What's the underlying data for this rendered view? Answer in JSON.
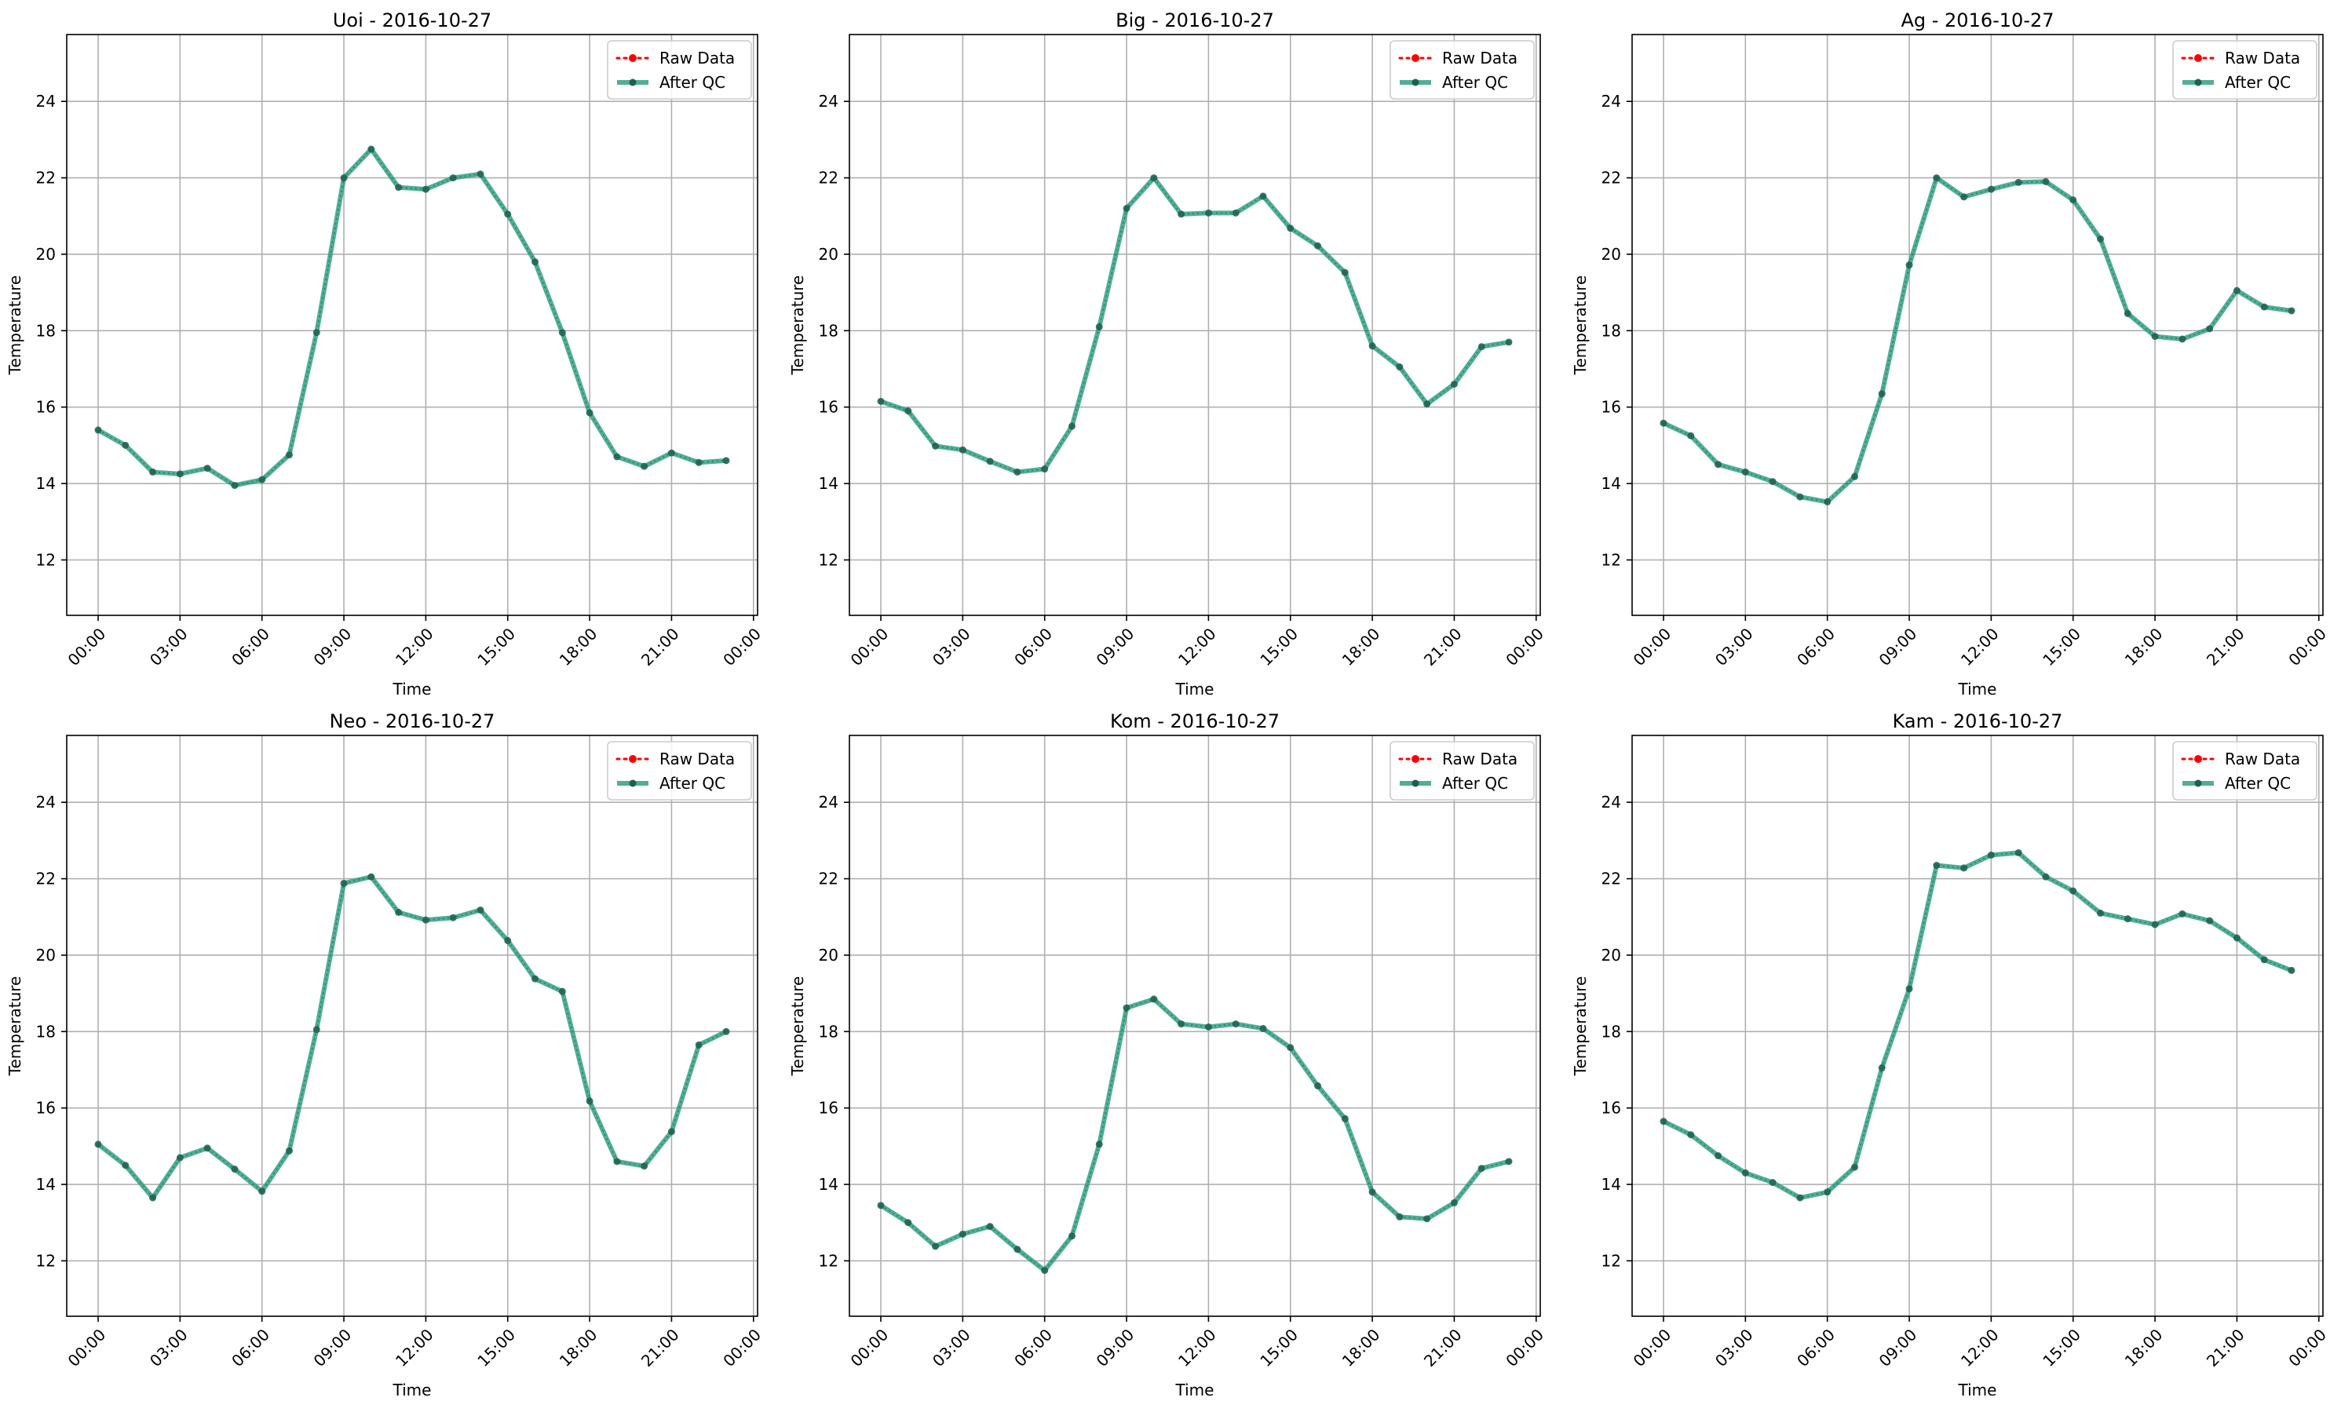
{
  "figure": {
    "background": "#ffffff",
    "legend_labels": {
      "raw": "Raw Data",
      "qc": "After QC"
    },
    "colors": {
      "raw": "#ff0000",
      "qc": "#2a9d7f",
      "marker_dark": "#1f5f4f",
      "grid": "#b0b0b0"
    }
  },
  "chart_data": [
    {
      "type": "line",
      "title": "Uoi - 2016-10-27",
      "xlabel": "Time",
      "ylabel": "Temperature",
      "x": [
        "00:00",
        "01:00",
        "02:00",
        "03:00",
        "04:00",
        "05:00",
        "06:00",
        "07:00",
        "08:00",
        "09:00",
        "10:00",
        "11:00",
        "12:00",
        "13:00",
        "14:00",
        "15:00",
        "16:00",
        "17:00",
        "18:00",
        "19:00",
        "20:00",
        "21:00",
        "22:00",
        "23:00"
      ],
      "series": [
        {
          "name": "Raw Data",
          "values": [
            15.4,
            15.0,
            14.3,
            14.25,
            14.4,
            13.95,
            14.1,
            14.75,
            17.95,
            22.0,
            22.75,
            21.75,
            21.7,
            22.0,
            22.1,
            21.05,
            19.8,
            17.95,
            15.85,
            14.7,
            14.45,
            14.8,
            14.55,
            14.6
          ]
        },
        {
          "name": "After QC",
          "values": [
            15.4,
            15.0,
            14.3,
            14.25,
            14.4,
            13.95,
            14.1,
            14.75,
            17.95,
            22.0,
            22.75,
            21.75,
            21.7,
            22.0,
            22.1,
            21.05,
            19.8,
            17.95,
            15.85,
            14.7,
            14.45,
            14.8,
            14.55,
            14.6
          ]
        }
      ],
      "xticks": [
        "00:00",
        "03:00",
        "06:00",
        "09:00",
        "12:00",
        "15:00",
        "18:00",
        "21:00",
        "00:00"
      ],
      "yticks": [
        12,
        14,
        16,
        18,
        20,
        22,
        24
      ],
      "ylim": [
        10.55,
        25.75
      ],
      "grid": true,
      "legend": "upper right"
    },
    {
      "type": "line",
      "title": "Big - 2016-10-27",
      "xlabel": "Time",
      "ylabel": "Temperature",
      "x": [
        "00:00",
        "01:00",
        "02:00",
        "03:00",
        "04:00",
        "05:00",
        "06:00",
        "07:00",
        "08:00",
        "09:00",
        "10:00",
        "11:00",
        "12:00",
        "13:00",
        "14:00",
        "15:00",
        "16:00",
        "17:00",
        "18:00",
        "19:00",
        "20:00",
        "21:00",
        "22:00",
        "23:00"
      ],
      "series": [
        {
          "name": "Raw Data",
          "values": [
            16.15,
            15.9,
            14.98,
            14.88,
            14.58,
            14.3,
            14.38,
            15.5,
            18.1,
            21.2,
            22.0,
            21.05,
            21.08,
            21.08,
            21.52,
            20.68,
            20.22,
            19.52,
            17.6,
            17.05,
            16.08,
            16.6,
            17.58,
            17.7
          ]
        },
        {
          "name": "After QC",
          "values": [
            16.15,
            15.9,
            14.98,
            14.88,
            14.58,
            14.3,
            14.38,
            15.5,
            18.1,
            21.2,
            22.0,
            21.05,
            21.08,
            21.08,
            21.52,
            20.68,
            20.22,
            19.52,
            17.6,
            17.05,
            16.08,
            16.6,
            17.58,
            17.7
          ]
        }
      ],
      "xticks": [
        "00:00",
        "03:00",
        "06:00",
        "09:00",
        "12:00",
        "15:00",
        "18:00",
        "21:00",
        "00:00"
      ],
      "yticks": [
        12,
        14,
        16,
        18,
        20,
        22,
        24
      ],
      "ylim": [
        10.55,
        25.75
      ],
      "grid": true,
      "legend": "upper right"
    },
    {
      "type": "line",
      "title": "Ag - 2016-10-27",
      "xlabel": "Time",
      "ylabel": "Temperature",
      "x": [
        "00:00",
        "01:00",
        "02:00",
        "03:00",
        "04:00",
        "05:00",
        "06:00",
        "07:00",
        "08:00",
        "09:00",
        "10:00",
        "11:00",
        "12:00",
        "13:00",
        "14:00",
        "15:00",
        "16:00",
        "17:00",
        "18:00",
        "19:00",
        "20:00",
        "21:00",
        "22:00",
        "23:00"
      ],
      "series": [
        {
          "name": "Raw Data",
          "values": [
            15.58,
            15.25,
            14.5,
            14.3,
            14.05,
            13.65,
            13.52,
            14.18,
            16.35,
            19.72,
            22.0,
            21.5,
            21.7,
            21.88,
            21.9,
            21.42,
            20.4,
            18.45,
            17.85,
            17.78,
            18.05,
            19.05,
            18.62,
            18.52
          ]
        },
        {
          "name": "After QC",
          "values": [
            15.58,
            15.25,
            14.5,
            14.3,
            14.05,
            13.65,
            13.52,
            14.18,
            16.35,
            19.72,
            22.0,
            21.5,
            21.7,
            21.88,
            21.9,
            21.42,
            20.4,
            18.45,
            17.85,
            17.78,
            18.05,
            19.05,
            18.62,
            18.52
          ]
        }
      ],
      "xticks": [
        "00:00",
        "03:00",
        "06:00",
        "09:00",
        "12:00",
        "15:00",
        "18:00",
        "21:00",
        "00:00"
      ],
      "yticks": [
        12,
        14,
        16,
        18,
        20,
        22,
        24
      ],
      "ylim": [
        10.55,
        25.75
      ],
      "grid": true,
      "legend": "upper right"
    },
    {
      "type": "line",
      "title": "Neo - 2016-10-27",
      "xlabel": "Time",
      "ylabel": "Temperature",
      "x": [
        "00:00",
        "01:00",
        "02:00",
        "03:00",
        "04:00",
        "05:00",
        "06:00",
        "07:00",
        "08:00",
        "09:00",
        "10:00",
        "11:00",
        "12:00",
        "13:00",
        "14:00",
        "15:00",
        "16:00",
        "17:00",
        "18:00",
        "19:00",
        "20:00",
        "21:00",
        "22:00",
        "23:00"
      ],
      "series": [
        {
          "name": "Raw Data",
          "values": [
            15.05,
            14.5,
            13.65,
            14.7,
            14.95,
            14.4,
            13.82,
            14.88,
            18.05,
            21.88,
            22.05,
            21.12,
            20.92,
            20.98,
            21.18,
            20.38,
            19.38,
            19.05,
            16.18,
            14.6,
            14.48,
            15.38,
            17.65,
            18.0
          ]
        },
        {
          "name": "After QC",
          "values": [
            15.05,
            14.5,
            13.65,
            14.7,
            14.95,
            14.4,
            13.82,
            14.88,
            18.05,
            21.88,
            22.05,
            21.12,
            20.92,
            20.98,
            21.18,
            20.38,
            19.38,
            19.05,
            16.18,
            14.6,
            14.48,
            15.38,
            17.65,
            18.0
          ]
        }
      ],
      "xticks": [
        "00:00",
        "03:00",
        "06:00",
        "09:00",
        "12:00",
        "15:00",
        "18:00",
        "21:00",
        "00:00"
      ],
      "yticks": [
        12,
        14,
        16,
        18,
        20,
        22,
        24
      ],
      "ylim": [
        10.55,
        25.75
      ],
      "grid": true,
      "legend": "upper right"
    },
    {
      "type": "line",
      "title": "Kom - 2016-10-27",
      "xlabel": "Time",
      "ylabel": "Temperature",
      "x": [
        "00:00",
        "01:00",
        "02:00",
        "03:00",
        "04:00",
        "05:00",
        "06:00",
        "07:00",
        "08:00",
        "09:00",
        "10:00",
        "11:00",
        "12:00",
        "13:00",
        "14:00",
        "15:00",
        "16:00",
        "17:00",
        "18:00",
        "19:00",
        "20:00",
        "21:00",
        "22:00",
        "23:00"
      ],
      "series": [
        {
          "name": "Raw Data",
          "values": [
            13.45,
            13.0,
            12.38,
            12.7,
            12.9,
            12.3,
            11.75,
            12.65,
            15.05,
            18.62,
            18.85,
            18.2,
            18.12,
            18.2,
            18.08,
            17.58,
            16.58,
            15.72,
            13.8,
            13.15,
            13.1,
            13.52,
            14.42,
            14.6
          ]
        },
        {
          "name": "After QC",
          "values": [
            13.45,
            13.0,
            12.38,
            12.7,
            12.9,
            12.3,
            11.75,
            12.65,
            15.05,
            18.62,
            18.85,
            18.2,
            18.12,
            18.2,
            18.08,
            17.58,
            16.58,
            15.72,
            13.8,
            13.15,
            13.1,
            13.52,
            14.42,
            14.6
          ]
        }
      ],
      "xticks": [
        "00:00",
        "03:00",
        "06:00",
        "09:00",
        "12:00",
        "15:00",
        "18:00",
        "21:00",
        "00:00"
      ],
      "yticks": [
        12,
        14,
        16,
        18,
        20,
        22,
        24
      ],
      "ylim": [
        10.55,
        25.75
      ],
      "grid": true,
      "legend": "upper right"
    },
    {
      "type": "line",
      "title": "Kam - 2016-10-27",
      "xlabel": "Time",
      "ylabel": "Temperature",
      "x": [
        "00:00",
        "01:00",
        "02:00",
        "03:00",
        "04:00",
        "05:00",
        "06:00",
        "07:00",
        "08:00",
        "09:00",
        "10:00",
        "11:00",
        "12:00",
        "13:00",
        "14:00",
        "15:00",
        "16:00",
        "17:00",
        "18:00",
        "19:00",
        "20:00",
        "21:00",
        "22:00",
        "23:00"
      ],
      "series": [
        {
          "name": "Raw Data",
          "values": [
            15.65,
            15.3,
            14.75,
            14.3,
            14.05,
            13.65,
            13.8,
            14.45,
            17.05,
            19.12,
            22.35,
            22.28,
            22.62,
            22.68,
            22.05,
            21.68,
            21.1,
            20.95,
            20.8,
            21.08,
            20.9,
            20.45,
            19.88,
            19.6
          ]
        },
        {
          "name": "After QC",
          "values": [
            15.65,
            15.3,
            14.75,
            14.3,
            14.05,
            13.65,
            13.8,
            14.45,
            17.05,
            19.12,
            22.35,
            22.28,
            22.62,
            22.68,
            22.05,
            21.68,
            21.1,
            20.95,
            20.8,
            21.08,
            20.9,
            20.45,
            19.88,
            19.6
          ]
        }
      ],
      "xticks": [
        "00:00",
        "03:00",
        "06:00",
        "09:00",
        "12:00",
        "15:00",
        "18:00",
        "21:00",
        "00:00"
      ],
      "yticks": [
        12,
        14,
        16,
        18,
        20,
        22,
        24
      ],
      "ylim": [
        10.55,
        25.75
      ],
      "grid": true,
      "legend": "upper right"
    }
  ]
}
